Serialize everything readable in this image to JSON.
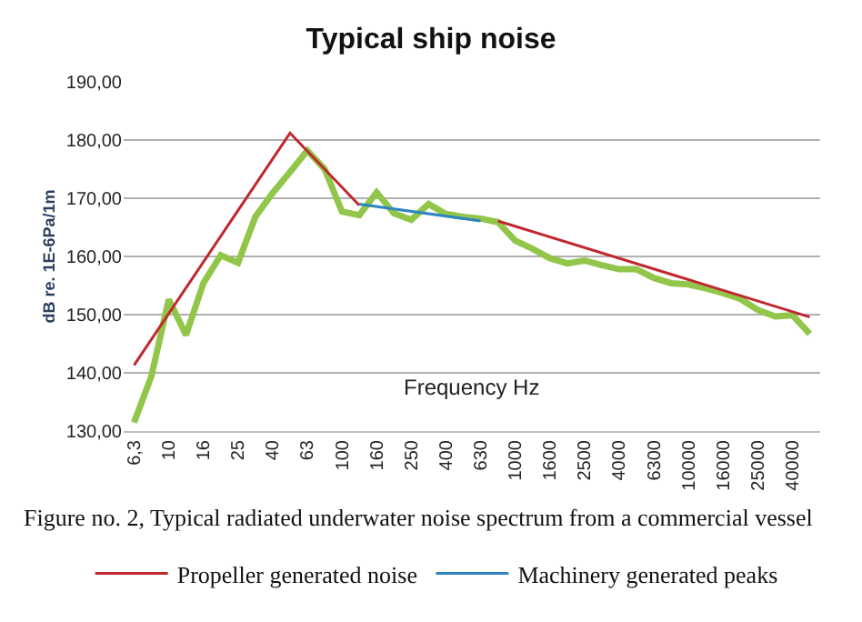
{
  "chart_data": {
    "type": "line",
    "title": "Typical ship noise",
    "xlabel": "Frequency Hz",
    "ylabel": "dB re. 1E-6Pa/1m",
    "categories": [
      "6,3",
      null,
      "10",
      null,
      "16",
      null,
      "25",
      null,
      "40",
      null,
      "63",
      null,
      "100",
      null,
      "160",
      null,
      "250",
      null,
      "400",
      null,
      "630",
      null,
      "1000",
      null,
      "1600",
      null,
      "2500",
      null,
      "4000",
      null,
      "6300",
      null,
      "10000",
      null,
      "16000",
      null,
      "25000",
      null,
      "40000",
      null
    ],
    "series": [
      {
        "color": "#92c64a",
        "values": [
          131.5,
          139.4,
          152.6,
          146.5,
          155.4,
          160.2,
          158.9,
          166.8,
          170.9,
          174.5,
          178.2,
          175.0,
          167.7,
          167.1,
          171.0,
          167.4,
          166.3,
          169.0,
          167.3,
          166.8,
          166.5,
          165.9,
          162.7,
          161.3,
          159.7,
          158.8,
          159.3,
          158.5,
          157.8,
          157.8,
          156.3,
          155.4,
          155.2,
          154.5,
          153.7,
          152.7,
          150.8,
          149.7,
          149.9,
          146.7
        ]
      },
      {
        "name": "Propeller generated noise",
        "color": "#c0282d",
        "values": [
          141.3,
          null,
          null,
          null,
          null,
          null,
          null,
          null,
          null,
          181.2,
          null,
          null,
          null,
          168.8,
          null,
          null,
          null,
          null,
          null,
          null,
          null,
          null,
          null,
          null,
          null,
          null,
          null,
          null,
          null,
          null,
          null,
          null,
          null,
          null,
          null,
          null,
          null,
          null,
          null,
          null
        ]
      },
      {
        "color": "#c0282d",
        "values": [
          null,
          null,
          null,
          null,
          null,
          null,
          null,
          null,
          null,
          null,
          null,
          null,
          null,
          null,
          null,
          null,
          null,
          null,
          null,
          null,
          null,
          166.1,
          null,
          null,
          null,
          null,
          null,
          null,
          null,
          null,
          null,
          null,
          null,
          null,
          null,
          null,
          null,
          null,
          null,
          149.6
        ]
      },
      {
        "name": "Machinery generated peaks",
        "color": "#2e86c1",
        "values": [
          null,
          null,
          null,
          null,
          null,
          null,
          null,
          null,
          null,
          null,
          null,
          null,
          null,
          169.0,
          null,
          null,
          null,
          null,
          null,
          null,
          166.1,
          null,
          null,
          null,
          null,
          null,
          null,
          null,
          null,
          null,
          null,
          null,
          null,
          null,
          null,
          null,
          null,
          null,
          null,
          null
        ]
      }
    ],
    "ylim": [
      130,
      190
    ],
    "yticks": [
      {
        "value": 130,
        "label": "130,00"
      },
      {
        "value": 140,
        "label": "140,00"
      },
      {
        "value": 150,
        "label": "150,00"
      },
      {
        "value": 160,
        "label": "160,00"
      },
      {
        "value": 170,
        "label": "170,00"
      },
      {
        "value": 180,
        "label": "180,00"
      },
      {
        "value": 190,
        "label": "190,00"
      }
    ],
    "grid": "y",
    "legend": "bottom",
    "marker": "none",
    "line_style": "solid",
    "annotations": [
      "Figure no. 2, Typical radiated underwater noise spectrum from a commercial vessel"
    ]
  }
}
